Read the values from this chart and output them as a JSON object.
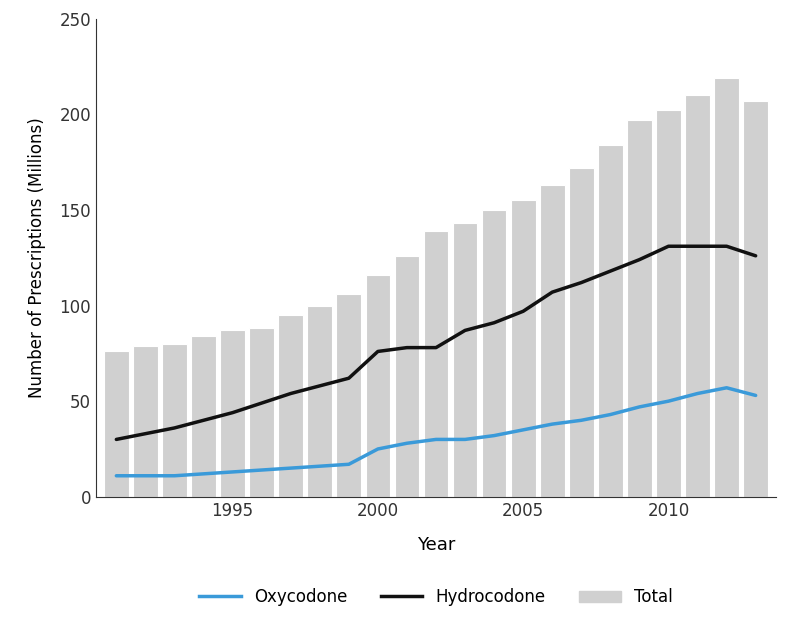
{
  "years": [
    1991,
    1992,
    1993,
    1994,
    1995,
    1996,
    1997,
    1998,
    1999,
    2000,
    2001,
    2002,
    2003,
    2004,
    2005,
    2006,
    2007,
    2008,
    2009,
    2010,
    2011,
    2012,
    2013
  ],
  "total": [
    76,
    79,
    80,
    84,
    87,
    88,
    95,
    100,
    106,
    116,
    126,
    139,
    143,
    150,
    155,
    163,
    172,
    184,
    197,
    202,
    210,
    219,
    207
  ],
  "hydrocodone": [
    30,
    33,
    36,
    40,
    44,
    49,
    54,
    58,
    62,
    76,
    78,
    78,
    87,
    91,
    97,
    107,
    112,
    118,
    124,
    131,
    131,
    131,
    126
  ],
  "oxycodone": [
    11,
    11,
    11,
    12,
    13,
    14,
    15,
    16,
    17,
    25,
    28,
    30,
    30,
    32,
    35,
    38,
    40,
    43,
    47,
    50,
    54,
    57,
    53
  ],
  "bar_color": "#d0d0d0",
  "bar_edgecolor": "#ffffff",
  "hydrocodone_color": "#111111",
  "oxycodone_color": "#3a9ad9",
  "ylabel": "Number of Prescriptions (Millions)",
  "xlabel": "Year",
  "ylim": [
    0,
    250
  ],
  "yticks": [
    0,
    50,
    100,
    150,
    200,
    250
  ],
  "xtick_years": [
    1995,
    2000,
    2005,
    2010
  ],
  "legend_labels": [
    "Oxycodone",
    "Hydrocodone",
    "Total"
  ],
  "line_width": 2.5,
  "bar_width": 0.85,
  "background_color": "#ffffff"
}
